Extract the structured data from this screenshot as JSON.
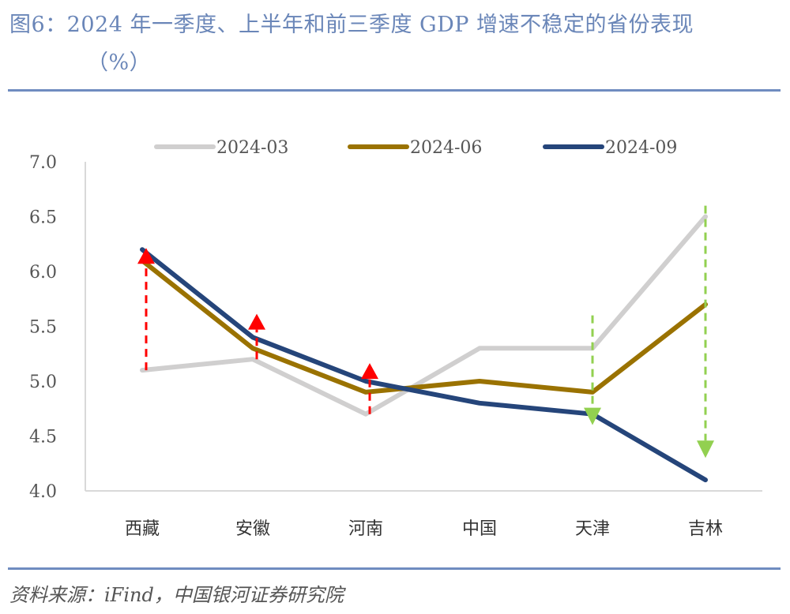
{
  "header": {
    "title_line1": "图6：2024 年一季度、上半年和前三季度 GDP 增速不稳定的省份表现",
    "title_line2": "（%）"
  },
  "footer": {
    "source": "资料来源：iFind，中国银河证券研究院"
  },
  "colors": {
    "title": "#6a86b8",
    "rule": "#6f8cc0",
    "series_2024_03": "#d0cfcf",
    "series_2024_06": "#9a7200",
    "series_2024_09": "#25457a",
    "up_arrow": "#ff0000",
    "down_arrow": "#92d050"
  },
  "chart_data": {
    "type": "line",
    "title": "2024 年一季度、上半年和前三季度 GDP 增速不稳定的省份表现（%）",
    "xlabel": "",
    "ylabel": "%",
    "categories": [
      "西藏",
      "安徽",
      "河南",
      "中国",
      "天津",
      "吉林"
    ],
    "ylim": [
      4.0,
      7.0
    ],
    "yticks": [
      "4.0",
      "4.5",
      "5.0",
      "5.5",
      "6.0",
      "6.5",
      "7.0"
    ],
    "ytick_values": [
      4.0,
      4.5,
      5.0,
      5.5,
      6.0,
      6.5,
      7.0
    ],
    "grid": false,
    "legend_position": "top",
    "series": [
      {
        "name": "2024-03",
        "values": [
          5.1,
          5.2,
          4.7,
          5.3,
          5.3,
          6.5
        ]
      },
      {
        "name": "2024-06",
        "values": [
          6.1,
          5.3,
          4.9,
          5.0,
          4.9,
          5.7
        ]
      },
      {
        "name": "2024-09",
        "values": [
          6.2,
          5.4,
          5.0,
          4.8,
          4.7,
          4.1
        ]
      }
    ],
    "annotations": [
      {
        "category": "西藏",
        "direction": "up",
        "from": 5.1,
        "to": 6.2
      },
      {
        "category": "安徽",
        "direction": "up",
        "from": 5.2,
        "to": 5.6
      },
      {
        "category": "河南",
        "direction": "up",
        "from": 4.7,
        "to": 5.15
      },
      {
        "category": "天津",
        "direction": "down",
        "from": 5.6,
        "to": 4.6
      },
      {
        "category": "吉林",
        "direction": "down",
        "from": 6.6,
        "to": 4.3
      }
    ]
  }
}
